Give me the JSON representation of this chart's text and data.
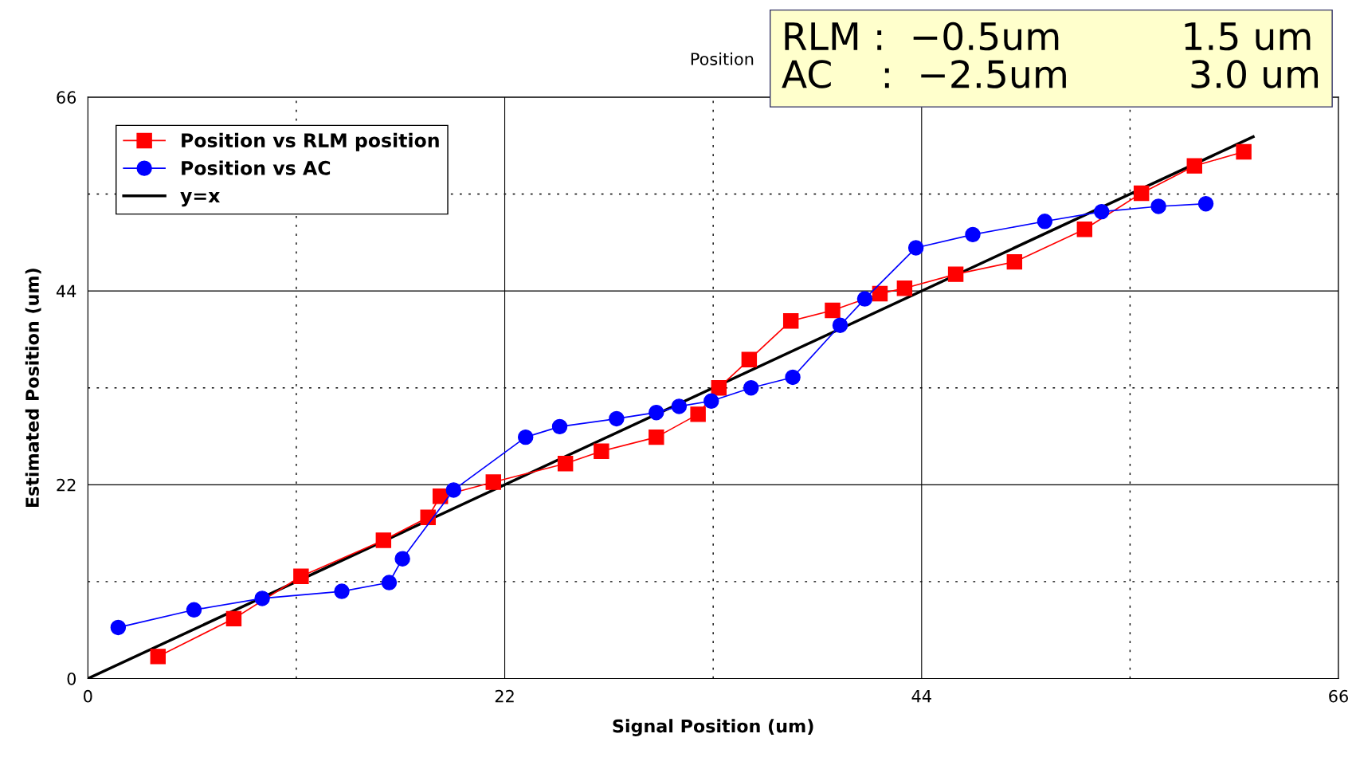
{
  "chart_data": {
    "type": "line",
    "title": "Position",
    "xlabel": "Signal Position (um)",
    "ylabel": "Estimated Position (um)",
    "annotations": [
      "RLM :  −0.5um          1.5 um\nAC    :  −2.5um          3.0 um"
    ],
    "xlim": [
      0,
      66
    ],
    "ylim": [
      0,
      66
    ],
    "xticks": [
      0,
      {
        "value": 11,
        "label": null
      },
      22,
      {
        "value": 33,
        "label": null
      },
      44,
      {
        "value": 55,
        "label": null
      },
      66
    ],
    "yticks": [
      0,
      {
        "value": 11,
        "label": null
      },
      22,
      {
        "value": 33,
        "label": null
      },
      44,
      {
        "value": 55,
        "label": null
      },
      66
    ],
    "grid": true,
    "legend": "top left",
    "series": [
      {
        "name": "Position vs RLM position",
        "color": "#ff0000",
        "marker": "square",
        "x": [
          3.7,
          7.7,
          11.25,
          15.6,
          17.95,
          18.6,
          21.4,
          25.2,
          27.1,
          30.0,
          32.2,
          33.3,
          34.9,
          37.1,
          39.3,
          41.8,
          43.1,
          45.8,
          48.9,
          52.6,
          55.6,
          58.4,
          61.0
        ],
        "values": [
          2.5,
          6.8,
          11.6,
          15.7,
          18.3,
          20.7,
          22.3,
          24.4,
          25.8,
          27.4,
          30.0,
          33.0,
          36.2,
          40.6,
          41.8,
          43.7,
          44.3,
          45.9,
          47.3,
          51.0,
          55.1,
          58.2,
          59.8
        ]
      },
      {
        "name": "Position vs AC",
        "color": "#0000ff",
        "marker": "circle",
        "x": [
          1.6,
          5.6,
          9.2,
          13.4,
          15.9,
          16.6,
          19.3,
          23.1,
          24.9,
          27.9,
          30.0,
          31.2,
          32.9,
          35.0,
          37.2,
          39.7,
          41.0,
          43.7,
          46.7,
          50.5,
          53.5,
          56.5,
          59.0
        ],
        "values": [
          5.8,
          7.8,
          9.1,
          9.9,
          10.9,
          13.6,
          21.4,
          27.4,
          28.6,
          29.5,
          30.2,
          30.9,
          31.5,
          33.0,
          34.2,
          40.1,
          43.1,
          48.9,
          50.4,
          51.9,
          53.0,
          53.6,
          53.9
        ]
      },
      {
        "name": "y=x",
        "color": "#000000",
        "marker": "none",
        "x": [
          0,
          61.5
        ],
        "values": [
          0,
          61.5
        ]
      }
    ]
  }
}
